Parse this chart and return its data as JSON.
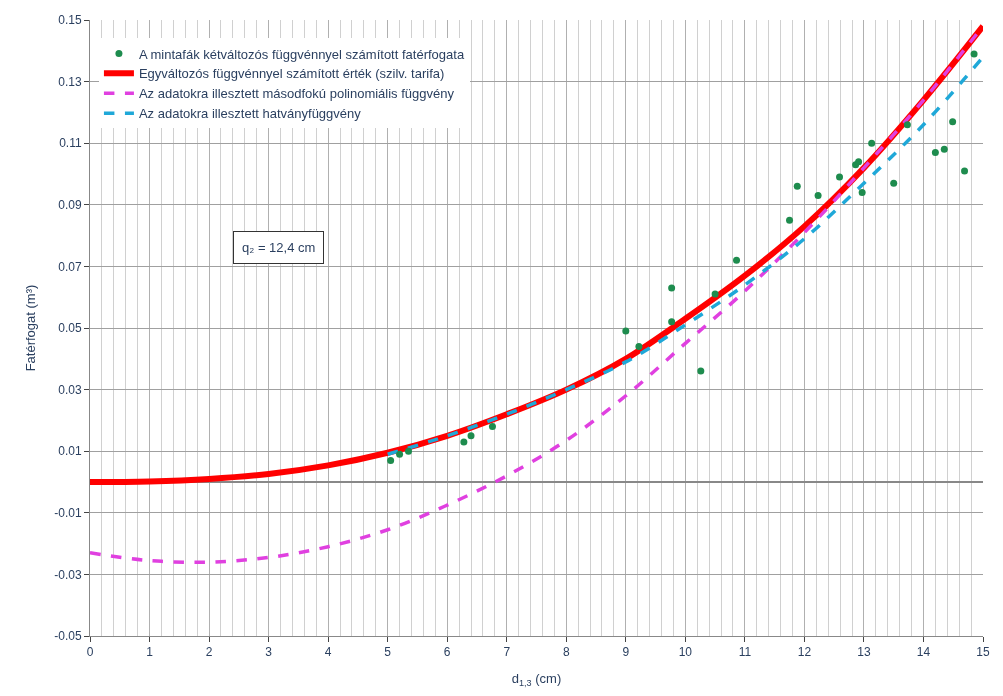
{
  "chart_data": {
    "type": "scatter",
    "xlabel": "d$_{1,3}$ (cm)",
    "ylabel": "Fatérfogat (m³)",
    "xlim": [
      0,
      15
    ],
    "ylim": [
      -0.05,
      0.15
    ],
    "xticks": [
      0,
      1,
      2,
      3,
      4,
      5,
      6,
      7,
      8,
      9,
      10,
      11,
      12,
      13,
      14,
      15
    ],
    "yticks": [
      -0.05,
      -0.03,
      -0.01,
      0.01,
      0.03,
      0.05,
      0.07,
      0.09,
      0.11,
      0.13,
      0.15
    ],
    "grid": true,
    "legend": "top left",
    "annotations": [
      "q₂ = 12,4 cm"
    ],
    "series": [
      {
        "name": "A mintafák kétváltozós függvénnyel számított fatérfogata",
        "marker": "circle",
        "color": "#1e8c4e",
        "x": [
          5.05,
          5.2,
          5.35,
          6.28,
          6.4,
          6.76,
          9.0,
          9.22,
          9.77,
          9.77,
          10.26,
          10.5,
          10.86,
          11.75,
          11.88,
          12.23,
          12.59,
          12.86,
          12.91,
          12.97,
          13.13,
          13.5,
          13.73,
          14.2,
          14.35,
          14.49,
          14.69,
          14.85
        ],
        "values": [
          0.007,
          0.009,
          0.01,
          0.013,
          0.015,
          0.018,
          0.049,
          0.044,
          0.063,
          0.052,
          0.036,
          0.061,
          0.072,
          0.085,
          0.096,
          0.093,
          0.099,
          0.103,
          0.104,
          0.094,
          0.11,
          0.097,
          0.116,
          0.107,
          0.108,
          0.117,
          0.101,
          0.139
        ]
      },
      {
        "name": "Egyváltozós függvénnyel számított érték (szilv. tarifa)",
        "type": "line",
        "line_style": "solid",
        "color": "#ff0000",
        "x": [
          0,
          1,
          2,
          3,
          4,
          5,
          6,
          7,
          8,
          9,
          10,
          11,
          12,
          13,
          14,
          15
        ],
        "values": [
          0,
          0.0002,
          0.001,
          0.0026,
          0.0054,
          0.0095,
          0.015,
          0.022,
          0.03,
          0.04,
          0.053,
          0.067,
          0.083,
          0.102,
          0.124,
          0.148
        ]
      },
      {
        "name": "Az adatokra illesztett másodfokú polinomiális függvény",
        "type": "line",
        "line_style": "dashed",
        "color": "#e040e0",
        "x": [
          0,
          1,
          2,
          3,
          4,
          5,
          6,
          7,
          8,
          9,
          10,
          11,
          12,
          13,
          14,
          15
        ],
        "values": [
          -0.023,
          -0.0255,
          -0.026,
          -0.0245,
          -0.021,
          -0.0155,
          -0.0075,
          0.002,
          0.0135,
          0.028,
          0.045,
          0.062,
          0.081,
          0.102,
          0.124,
          0.148
        ]
      },
      {
        "name": "Az adatokra illesztett hatványfüggvény",
        "type": "line",
        "line_style": "dashed",
        "color": "#1fa8d8",
        "x": [
          5,
          6,
          7,
          8,
          9,
          10,
          11,
          12,
          13,
          14,
          15
        ],
        "values": [
          0.009,
          0.015,
          0.022,
          0.03,
          0.039,
          0.051,
          0.064,
          0.079,
          0.097,
          0.116,
          0.138
        ]
      }
    ]
  }
}
